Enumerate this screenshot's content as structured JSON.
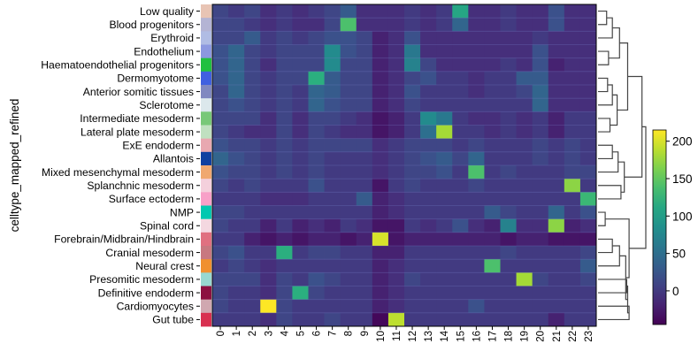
{
  "chart_data": {
    "type": "heatmap",
    "title": "",
    "ylabel": "celltype_mapped_refined",
    "xlabel": "",
    "rows": [
      "Low quality",
      "Blood progenitors",
      "Erythroid",
      "Endothelium",
      "Haematoendothelial progenitors",
      "Dermomyotome",
      "Anterior somitic tissues",
      "Sclerotome",
      "Intermediate mesoderm",
      "Lateral plate mesoderm",
      "ExE endoderm",
      "Allantois",
      "Mixed mesenchymal mesoderm",
      "Splanchnic mesoderm",
      "Surface ectoderm",
      "NMP",
      "Spinal cord",
      "Forebrain/Midbrain/Hindbrain",
      "Cranial mesoderm",
      "Neural crest",
      "Presomitic mesoderm",
      "Definitive endoderm",
      "Cardiomyocytes",
      "Gut tube"
    ],
    "columns": [
      "0",
      "1",
      "2",
      "3",
      "4",
      "5",
      "6",
      "7",
      "8",
      "9",
      "10",
      "11",
      "12",
      "13",
      "14",
      "15",
      "16",
      "17",
      "18",
      "19",
      "20",
      "21",
      "22",
      "23"
    ],
    "row_colors": [
      "#e8c4b4",
      "#b4b4d4",
      "#b0bce4",
      "#8c98e0",
      "#20c040",
      "#4060e0",
      "#8088c0",
      "#dce8ec",
      "#78c878",
      "#c0e0c0",
      "#e8a8b0",
      "#1040a0",
      "#f0a870",
      "#f4d0dc",
      "#f8a0c8",
      "#00c8b0",
      "#f4d8e0",
      "#e07080",
      "#c87880",
      "#f09030",
      "#98d8d0",
      "#8c1040",
      "#d0a8b0",
      "#d83050"
    ],
    "values": [
      [
        10,
        0,
        10,
        -10,
        0,
        -10,
        0,
        10,
        30,
        -10,
        -10,
        -10,
        0,
        -10,
        0,
        110,
        -10,
        -10,
        0,
        -10,
        -10,
        20,
        -10,
        -10
      ],
      [
        10,
        10,
        0,
        -10,
        0,
        -10,
        -10,
        10,
        140,
        -10,
        -10,
        -10,
        0,
        -10,
        0,
        40,
        -10,
        -10,
        0,
        -10,
        -10,
        20,
        -10,
        -10
      ],
      [
        10,
        10,
        30,
        0,
        10,
        0,
        10,
        20,
        20,
        10,
        -20,
        -10,
        20,
        -10,
        -10,
        -10,
        -10,
        -10,
        -10,
        -10,
        0,
        -10,
        -10,
        -10
      ],
      [
        20,
        40,
        10,
        0,
        10,
        10,
        10,
        80,
        20,
        10,
        -20,
        -10,
        60,
        -10,
        -10,
        -10,
        -10,
        -10,
        -10,
        -10,
        20,
        -10,
        -10,
        -10
      ],
      [
        20,
        40,
        10,
        -10,
        10,
        10,
        10,
        80,
        10,
        10,
        -20,
        -10,
        70,
        10,
        -10,
        -10,
        -10,
        -10,
        0,
        -10,
        20,
        -20,
        -10,
        -10
      ],
      [
        20,
        40,
        10,
        0,
        10,
        10,
        120,
        30,
        10,
        10,
        -20,
        -10,
        10,
        20,
        0,
        0,
        -10,
        0,
        0,
        30,
        30,
        -10,
        -10,
        -10
      ],
      [
        10,
        40,
        10,
        0,
        10,
        0,
        40,
        30,
        10,
        10,
        -20,
        -10,
        20,
        0,
        0,
        0,
        -10,
        0,
        0,
        10,
        40,
        -10,
        -10,
        -10
      ],
      [
        10,
        20,
        10,
        0,
        10,
        0,
        40,
        20,
        10,
        10,
        -20,
        -10,
        10,
        0,
        0,
        0,
        0,
        0,
        0,
        0,
        40,
        -10,
        -10,
        -10
      ],
      [
        10,
        10,
        10,
        -10,
        10,
        -10,
        10,
        10,
        0,
        -10,
        -30,
        -20,
        0,
        80,
        60,
        0,
        -10,
        -10,
        0,
        -10,
        0,
        -20,
        0,
        0
      ],
      [
        10,
        0,
        -10,
        -10,
        10,
        -10,
        10,
        0,
        -10,
        -10,
        -30,
        -20,
        0,
        50,
        180,
        0,
        0,
        -10,
        0,
        -10,
        0,
        -20,
        0,
        0
      ],
      [
        20,
        10,
        10,
        0,
        10,
        0,
        10,
        10,
        10,
        10,
        -10,
        0,
        10,
        10,
        10,
        0,
        10,
        0,
        0,
        0,
        10,
        0,
        10,
        0
      ],
      [
        40,
        20,
        10,
        0,
        10,
        0,
        10,
        0,
        0,
        0,
        -10,
        0,
        10,
        20,
        30,
        10,
        40,
        0,
        0,
        0,
        10,
        0,
        10,
        0
      ],
      [
        20,
        10,
        10,
        0,
        10,
        0,
        10,
        0,
        0,
        0,
        -10,
        0,
        10,
        10,
        20,
        0,
        140,
        0,
        10,
        0,
        0,
        0,
        10,
        10
      ],
      [
        10,
        0,
        10,
        0,
        0,
        0,
        20,
        0,
        0,
        0,
        -30,
        0,
        10,
        0,
        0,
        0,
        10,
        0,
        0,
        0,
        0,
        0,
        170,
        0
      ],
      [
        0,
        0,
        0,
        -10,
        -10,
        -10,
        0,
        0,
        0,
        30,
        -20,
        -10,
        0,
        0,
        0,
        0,
        0,
        0,
        0,
        0,
        0,
        0,
        0,
        130
      ],
      [
        10,
        10,
        0,
        0,
        0,
        0,
        0,
        0,
        0,
        0,
        -20,
        -10,
        0,
        0,
        0,
        0,
        0,
        30,
        10,
        0,
        0,
        40,
        0,
        20
      ],
      [
        10,
        0,
        0,
        -20,
        0,
        -20,
        -10,
        -20,
        0,
        -10,
        -30,
        -30,
        0,
        -10,
        0,
        20,
        -10,
        -20,
        70,
        -10,
        -10,
        170,
        -20,
        -10
      ],
      [
        0,
        0,
        -20,
        -30,
        -20,
        -30,
        -20,
        -20,
        -30,
        -20,
        200,
        -30,
        -20,
        -20,
        -20,
        -20,
        -20,
        -20,
        -30,
        -20,
        -20,
        -30,
        -30,
        -30
      ],
      [
        10,
        20,
        0,
        0,
        120,
        0,
        10,
        10,
        0,
        0,
        -20,
        -20,
        0,
        0,
        0,
        0,
        0,
        0,
        10,
        0,
        0,
        0,
        0,
        10
      ],
      [
        0,
        10,
        0,
        -10,
        0,
        0,
        0,
        0,
        0,
        0,
        -20,
        -10,
        0,
        0,
        0,
        0,
        0,
        140,
        0,
        0,
        0,
        0,
        0,
        30
      ],
      [
        10,
        10,
        10,
        -10,
        10,
        0,
        20,
        10,
        0,
        0,
        -20,
        -10,
        10,
        0,
        0,
        0,
        0,
        0,
        0,
        180,
        10,
        0,
        0,
        10
      ],
      [
        10,
        0,
        0,
        -10,
        10,
        120,
        10,
        0,
        0,
        0,
        -20,
        -10,
        0,
        0,
        0,
        0,
        0,
        0,
        0,
        0,
        0,
        0,
        0,
        0
      ],
      [
        10,
        0,
        0,
        220,
        10,
        0,
        0,
        0,
        0,
        0,
        -20,
        -10,
        0,
        0,
        0,
        0,
        20,
        0,
        0,
        0,
        0,
        0,
        0,
        0
      ],
      [
        0,
        0,
        0,
        -10,
        10,
        0,
        0,
        10,
        0,
        0,
        -40,
        190,
        0,
        0,
        0,
        0,
        0,
        0,
        0,
        0,
        0,
        -20,
        0,
        0
      ]
    ],
    "colorbar": {
      "colormap": "viridis",
      "vmin": -45,
      "vmax": 215,
      "ticks": [
        0,
        50,
        100,
        150,
        200
      ]
    },
    "dendrogram": "right",
    "grid": false,
    "legend": "colorbar right"
  }
}
